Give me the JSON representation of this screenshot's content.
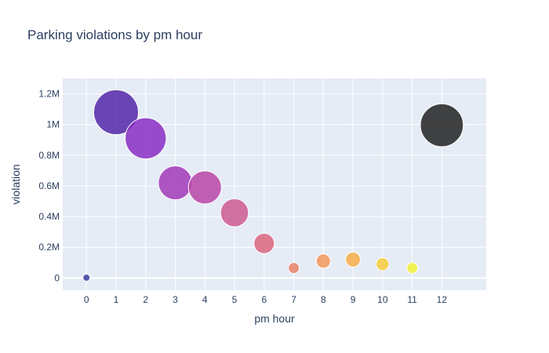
{
  "chart_data": {
    "type": "scatter",
    "title": "Parking violations by pm hour",
    "xlabel": "pm hour",
    "ylabel": "violation",
    "xlim": [
      -0.8,
      13.5
    ],
    "ylim": [
      -80000,
      1300000
    ],
    "x_ticks": [
      0,
      1,
      2,
      3,
      4,
      5,
      6,
      7,
      8,
      9,
      10,
      11,
      12
    ],
    "y_ticks": [
      {
        "value": 0,
        "label": "0"
      },
      {
        "value": 200000,
        "label": "0.2M"
      },
      {
        "value": 400000,
        "label": "0.4M"
      },
      {
        "value": 600000,
        "label": "0.6M"
      },
      {
        "value": 800000,
        "label": "0.8M"
      },
      {
        "value": 1000000,
        "label": "1M"
      },
      {
        "value": 1200000,
        "label": "1.2M"
      }
    ],
    "grid": true,
    "size_encodes": "violation",
    "points": [
      {
        "x": 0,
        "y": 2000,
        "color": "#3a3c9e"
      },
      {
        "x": 1,
        "y": 1080000,
        "color": "#5327a8"
      },
      {
        "x": 2,
        "y": 910000,
        "color": "#8a2ec4"
      },
      {
        "x": 3,
        "y": 620000,
        "color": "#a23ab8"
      },
      {
        "x": 4,
        "y": 590000,
        "color": "#b946a8"
      },
      {
        "x": 5,
        "y": 425000,
        "color": "#cc5a92"
      },
      {
        "x": 6,
        "y": 225000,
        "color": "#da6680"
      },
      {
        "x": 7,
        "y": 65000,
        "color": "#e8826a"
      },
      {
        "x": 8,
        "y": 110000,
        "color": "#f3975a"
      },
      {
        "x": 9,
        "y": 120000,
        "color": "#f8ae4a"
      },
      {
        "x": 10,
        "y": 90000,
        "color": "#f8cc3c"
      },
      {
        "x": 11,
        "y": 65000,
        "color": "#f2f038"
      },
      {
        "x": 12,
        "y": 995000,
        "color": "#222222"
      }
    ]
  }
}
